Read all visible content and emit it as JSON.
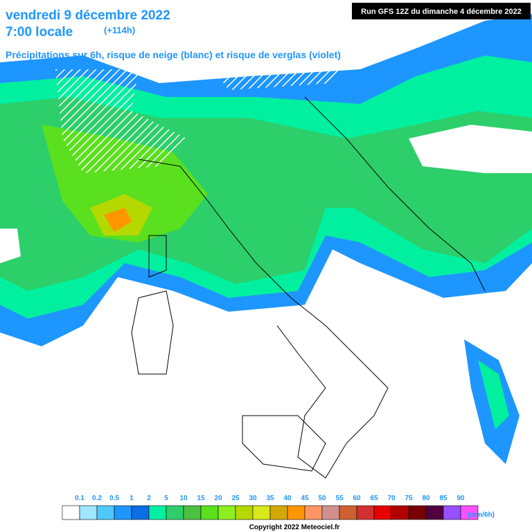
{
  "header": {
    "date": "vendredi 9 décembre 2022",
    "time": "7:00 locale",
    "lead": "(+114h)",
    "subtitle": "Précipitations sur 6h, risque de neige (blanc) et risque de verglas (violet)",
    "run": "Run GFS 12Z du dimanche 4 décembre 2022"
  },
  "legend": {
    "labels": [
      0.1,
      0.2,
      0.5,
      1,
      2,
      5,
      10,
      15,
      20,
      25,
      30,
      35,
      40,
      45,
      50,
      55,
      60,
      65,
      70,
      75,
      80,
      85,
      90
    ],
    "colors": [
      "#ffffff",
      "#a0e6ff",
      "#50c8ff",
      "#1e96ff",
      "#0a6ee6",
      "#00f0a0",
      "#2ccf6a",
      "#4cc040",
      "#5ae01e",
      "#8cf020",
      "#b4d800",
      "#d8e81a",
      "#d4a800",
      "#ff9600",
      "#ff9664",
      "#d09090",
      "#d06030",
      "#d03030",
      "#e80000",
      "#b00000",
      "#780000",
      "#500040",
      "#9650ff"
    ],
    "last_color": "#ff50ff",
    "unit": "(mm/6h)"
  },
  "footer": {
    "copyright": "Copyright 2022 Meteociel.fr"
  }
}
